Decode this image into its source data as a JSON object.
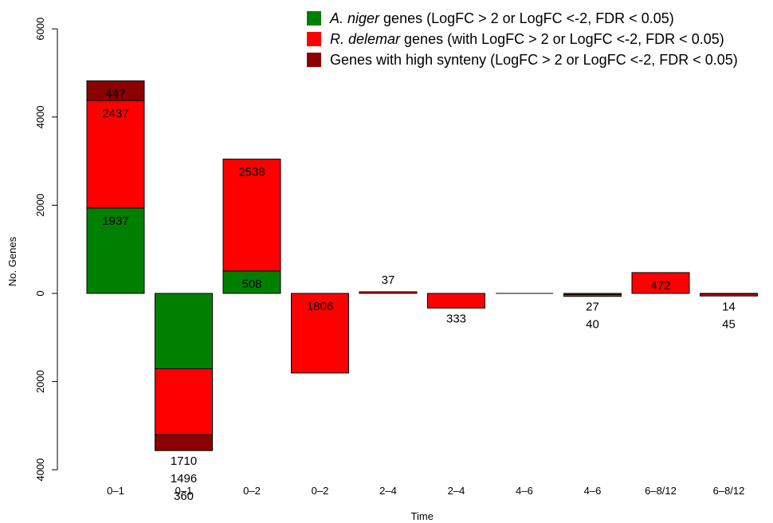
{
  "chart_data": {
    "type": "bar",
    "stacked": true,
    "title": "",
    "xlabel": "Time",
    "ylabel": "No. Genes",
    "ylim": [
      -4000,
      6000
    ],
    "ytick_values": [
      -4000,
      -2000,
      0,
      2000,
      4000,
      6000
    ],
    "ytick_labels": [
      "4000",
      "2000",
      "0",
      "2000",
      "4000",
      "6000"
    ],
    "grid": false,
    "legend_position": "top-right",
    "categories": [
      "0–1",
      "0–1",
      "0–2",
      "0–2",
      "2–4",
      "2–4",
      "4–6",
      "4–6",
      "6–8/12",
      "6–8/12"
    ],
    "series": [
      {
        "legend_italic": "A. niger",
        "legend_rest": " genes (LogFC > 2 or LogFC <-2, FDR < 0.05)",
        "color": "#008000",
        "values": [
          1937,
          -1710,
          508,
          0,
          0,
          0,
          0,
          -27,
          0,
          -14
        ]
      },
      {
        "legend_italic": "R. delemar",
        "legend_rest": " genes (with LogFC > 2 or LogFC <-2, FDR < 0.05)",
        "color": "#ff0000",
        "values": [
          2437,
          -1496,
          2538,
          -1806,
          37,
          -333,
          0,
          -40,
          472,
          -45
        ]
      },
      {
        "legend_italic": "",
        "legend_rest": "Genes with high synteny (LogFC > 2 or LogFC <-2, FDR < 0.05)",
        "color": "#8b0000",
        "values": [
          447,
          -360,
          0,
          0,
          0,
          0,
          0,
          0,
          0,
          0
        ]
      }
    ],
    "data_labels": [
      {
        "bar": 0,
        "text": "447"
      },
      {
        "bar": 0,
        "text": "2437"
      },
      {
        "bar": 0,
        "text": "1937"
      },
      {
        "bar": 1,
        "text": "1710"
      },
      {
        "bar": 1,
        "text": "1496"
      },
      {
        "bar": 1,
        "text": "360"
      },
      {
        "bar": 2,
        "text": "2538"
      },
      {
        "bar": 2,
        "text": "508"
      },
      {
        "bar": 3,
        "text": "1806"
      },
      {
        "bar": 4,
        "text": "37"
      },
      {
        "bar": 5,
        "text": "333"
      },
      {
        "bar": 7,
        "text": "27"
      },
      {
        "bar": 7,
        "text": "40"
      },
      {
        "bar": 8,
        "text": "472"
      },
      {
        "bar": 9,
        "text": "14"
      },
      {
        "bar": 9,
        "text": "45"
      }
    ]
  }
}
